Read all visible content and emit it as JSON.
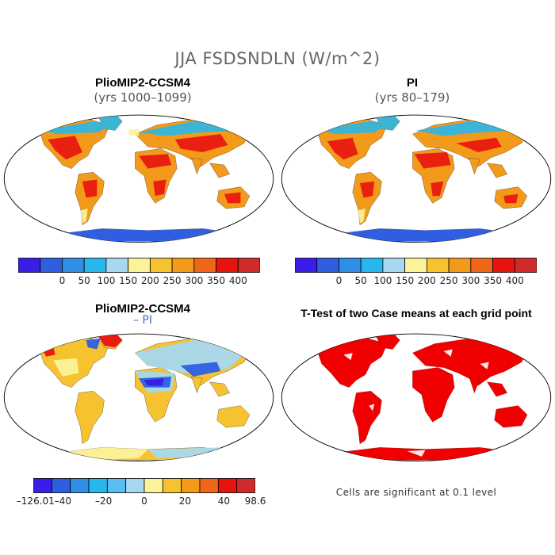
{
  "main_title": "JJA FSDSNDLN (W/m^2)",
  "panels": [
    {
      "title": "PlioMIP2-CCSM4",
      "subtitle": "(yrs 1000–1099)"
    },
    {
      "title": "PI",
      "subtitle": "(yrs 80–179)"
    },
    {
      "title": "PlioMIP2-CCSM4",
      "subtitle": "– PI"
    },
    {
      "title": "T-Test of two Case means at each grid point",
      "subtitle": ""
    }
  ],
  "colorbar_abs": {
    "colors": [
      "#3a1ee8",
      "#2f5fe0",
      "#2f8fe6",
      "#27b7ec",
      "#a6d8f0",
      "#fbf39a",
      "#f7c230",
      "#f39a1a",
      "#ef6618",
      "#e8130f",
      "#d12a2a"
    ],
    "labels": [
      "0",
      "50",
      "100",
      "150",
      "200",
      "250",
      "300",
      "350",
      "400"
    ]
  },
  "colorbar_diff": {
    "colors": [
      "#3a1ee8",
      "#2f5fe0",
      "#2f8fe6",
      "#27b7ec",
      "#58bdf0",
      "#a6d8f0",
      "#fbf39a",
      "#f7c230",
      "#f39a1a",
      "#ef6618",
      "#e8130f",
      "#d12a2a"
    ],
    "labels": [
      "–126.01",
      "–40",
      "–20",
      "0",
      "20",
      "40",
      "98.6"
    ]
  },
  "ttest_note": "Cells are significant at 0.1 level"
}
